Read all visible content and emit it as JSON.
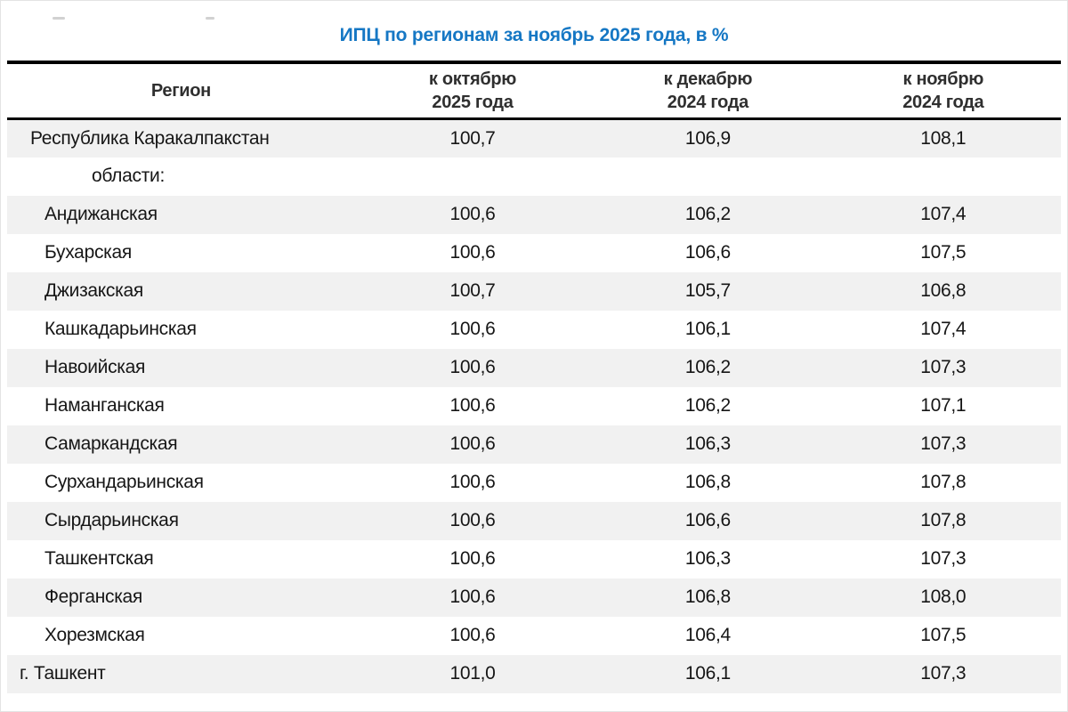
{
  "title": "ИПЦ по регионам за ноябрь 2025 года, в %",
  "colors": {
    "title": "#1577c4",
    "row_alt": "#f1f1f1",
    "rule": "#000000"
  },
  "table": {
    "columns": [
      {
        "line1": "Регион",
        "line2": ""
      },
      {
        "line1": "к октябрю",
        "line2": "2025 года"
      },
      {
        "line1": "к декабрю",
        "line2": "2024 года"
      },
      {
        "line1": "к ноябрю",
        "line2": "2024 года"
      }
    ],
    "rows": [
      {
        "region": "Республика Каракалпакстан",
        "indent": "republic",
        "values": [
          "100,7",
          "106,9",
          "108,1"
        ]
      },
      {
        "region": "области:",
        "indent": "subheader",
        "values": [
          "",
          "",
          ""
        ]
      },
      {
        "region": "Андижанская",
        "indent": "oblast",
        "values": [
          "100,6",
          "106,2",
          "107,4"
        ]
      },
      {
        "region": "Бухарская",
        "indent": "oblast",
        "values": [
          "100,6",
          "106,6",
          "107,5"
        ]
      },
      {
        "region": "Джизакская",
        "indent": "oblast",
        "values": [
          "100,7",
          "105,7",
          "106,8"
        ]
      },
      {
        "region": "Кашкадарьинская",
        "indent": "oblast",
        "values": [
          "100,6",
          "106,1",
          "107,4"
        ]
      },
      {
        "region": "Навоийская",
        "indent": "oblast",
        "values": [
          "100,6",
          "106,2",
          "107,3"
        ]
      },
      {
        "region": "Наманганская",
        "indent": "oblast",
        "values": [
          "100,6",
          "106,2",
          "107,1"
        ]
      },
      {
        "region": "Самаркандская",
        "indent": "oblast",
        "values": [
          "100,6",
          "106,3",
          "107,3"
        ]
      },
      {
        "region": "Сурхандарьинская",
        "indent": "oblast",
        "values": [
          "100,6",
          "106,8",
          "107,8"
        ]
      },
      {
        "region": "Сырдарьинская",
        "indent": "oblast",
        "values": [
          "100,6",
          "106,6",
          "107,8"
        ]
      },
      {
        "region": "Ташкентская",
        "indent": "oblast",
        "values": [
          "100,6",
          "106,3",
          "107,3"
        ]
      },
      {
        "region": "Ферганская",
        "indent": "oblast",
        "values": [
          "100,6",
          "106,8",
          "108,0"
        ]
      },
      {
        "region": "Хорезмская",
        "indent": "oblast",
        "values": [
          "100,6",
          "106,4",
          "107,5"
        ]
      },
      {
        "region": "г. Ташкент",
        "indent": "city",
        "values": [
          "101,0",
          "106,1",
          "107,3"
        ]
      }
    ]
  }
}
